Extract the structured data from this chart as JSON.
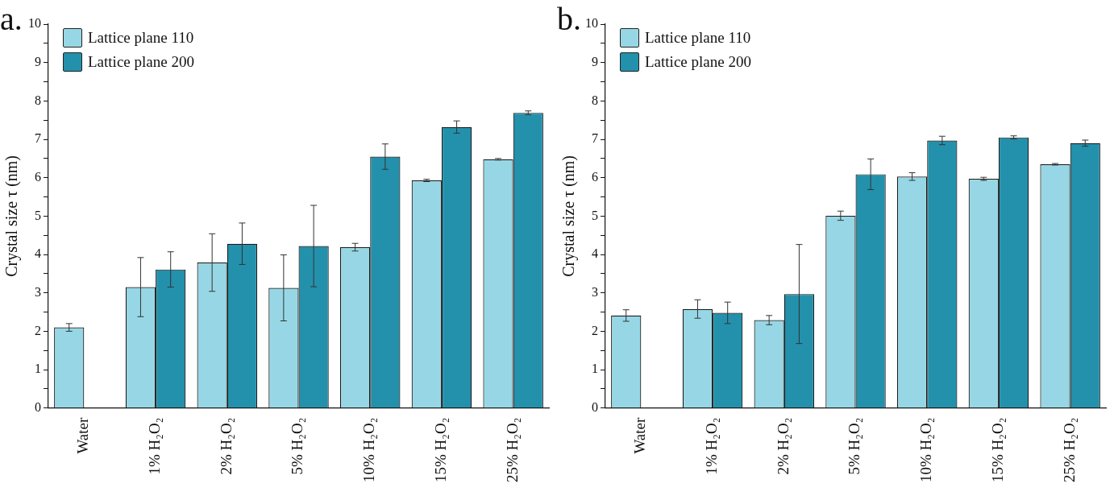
{
  "chart_data": [
    {
      "type": "bar",
      "title": "a.",
      "ylabel": "Crystal size τ (nm)",
      "categories": [
        "Water",
        "1% H₂O₂",
        "2% H₂O₂",
        "5% H₂O₂",
        "10% H₂O₂",
        "15% H₂O₂",
        "25% H₂O₂"
      ],
      "series": [
        {
          "name": "Lattice plane 110",
          "color": "#97d7e5",
          "values": [
            2.1,
            3.15,
            3.79,
            3.13,
            4.19,
            5.93,
            6.48
          ],
          "errors": [
            0.1,
            0.77,
            0.75,
            0.86,
            0.1,
            0.03,
            0.02
          ]
        },
        {
          "name": "Lattice plane 200",
          "color": "#2391ab",
          "values": [
            null,
            3.61,
            4.28,
            4.22,
            6.55,
            7.32,
            7.69
          ],
          "errors": [
            null,
            0.46,
            0.54,
            1.06,
            0.33,
            0.16,
            0.05
          ]
        }
      ],
      "ylim": [
        0,
        10
      ],
      "yticks": [
        0,
        {
          "value": 0.5,
          "label": null
        },
        1,
        {
          "value": 1.5,
          "label": null
        },
        2,
        {
          "value": 2.5,
          "label": null
        },
        3,
        {
          "value": 3.5,
          "label": null
        },
        4,
        {
          "value": 4.5,
          "label": null
        },
        5,
        {
          "value": 5.5,
          "label": null
        },
        6,
        {
          "value": 6.5,
          "label": null
        },
        7,
        {
          "value": 7.5,
          "label": null
        },
        8,
        {
          "value": 8.5,
          "label": null
        },
        9,
        {
          "value": 9.5,
          "label": null
        },
        10
      ],
      "grid": false,
      "legend": "top left"
    },
    {
      "type": "bar",
      "title": "b.",
      "ylabel": "Crystal size τ (nm)",
      "categories": [
        "Water",
        "1% H₂O₂",
        "2% H₂O₂",
        "5% H₂O₂",
        "10% H₂O₂",
        "15% H₂O₂",
        "25% H₂O₂"
      ],
      "series": [
        {
          "name": "Lattice plane 110",
          "color": "#97d7e5",
          "values": [
            2.41,
            2.58,
            2.29,
            5.01,
            6.03,
            5.97,
            6.35
          ],
          "errors": [
            0.15,
            0.24,
            0.12,
            0.12,
            0.1,
            0.04,
            0.02
          ]
        },
        {
          "name": "Lattice plane 200",
          "color": "#2391ab",
          "values": [
            null,
            2.48,
            2.97,
            6.09,
            6.97,
            7.05,
            6.9
          ],
          "errors": [
            null,
            0.28,
            1.29,
            0.4,
            0.11,
            0.04,
            0.08
          ]
        }
      ],
      "ylim": [
        0,
        10
      ],
      "yticks": [
        0,
        {
          "value": 0.5,
          "label": null
        },
        1,
        {
          "value": 1.5,
          "label": null
        },
        2,
        {
          "value": 2.5,
          "label": null
        },
        3,
        {
          "value": 3.5,
          "label": null
        },
        4,
        {
          "value": 4.5,
          "label": null
        },
        5,
        {
          "value": 5.5,
          "label": null
        },
        6,
        {
          "value": 6.5,
          "label": null
        },
        7,
        {
          "value": 7.5,
          "label": null
        },
        8,
        {
          "value": 8.5,
          "label": null
        },
        9,
        {
          "value": 9.5,
          "label": null
        },
        10
      ],
      "grid": false,
      "legend": "top left"
    }
  ]
}
